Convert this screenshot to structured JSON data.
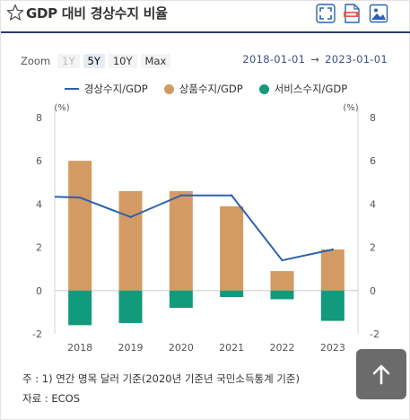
{
  "header": {
    "title": "GDP 대비 경상수지 비율",
    "icons": [
      "star-icon",
      "fullscreen-icon",
      "data-download-icon",
      "image-download-icon"
    ]
  },
  "zoom": {
    "label": "Zoom",
    "buttons": [
      {
        "label": "1Y",
        "state": "disabled"
      },
      {
        "label": "5Y",
        "state": "selected"
      },
      {
        "label": "10Y",
        "state": "normal"
      },
      {
        "label": "Max",
        "state": "normal"
      }
    ]
  },
  "range": {
    "start": "2018-01-01",
    "arrow": "→",
    "end": "2023-01-01"
  },
  "colors": {
    "accent": "#2a3b6e",
    "line": "#2c62b0",
    "goods": "#d39a63",
    "services": "#119a7c"
  },
  "chart_data": {
    "type": "bar",
    "categories": [
      "2018",
      "2019",
      "2020",
      "2021",
      "2022",
      "2023"
    ],
    "series": [
      {
        "name": "경상수지/GDP",
        "type": "line",
        "values": [
          4.3,
          3.4,
          4.4,
          4.4,
          1.4,
          1.9
        ]
      },
      {
        "name": "상품수지/GDP",
        "type": "bar",
        "values": [
          6.0,
          4.6,
          4.6,
          3.9,
          0.9,
          1.9
        ]
      },
      {
        "name": "서비스수지/GDP",
        "type": "bar",
        "values": [
          -1.6,
          -1.5,
          -0.8,
          -0.3,
          -0.4,
          -1.4
        ]
      }
    ],
    "ylim": [
      -2,
      8
    ],
    "yticks": [
      -2,
      0,
      2,
      4,
      6,
      8
    ],
    "left_unit": "(%)",
    "right_unit": "(%)",
    "legend_position": "top"
  },
  "notes": {
    "line1": "주 : 1) 연간 명목 달러 기준(2020년 기준년 국민소득통계 기준)",
    "line2": "자료 : ECOS"
  },
  "scroll_top": {
    "label": "↑"
  }
}
